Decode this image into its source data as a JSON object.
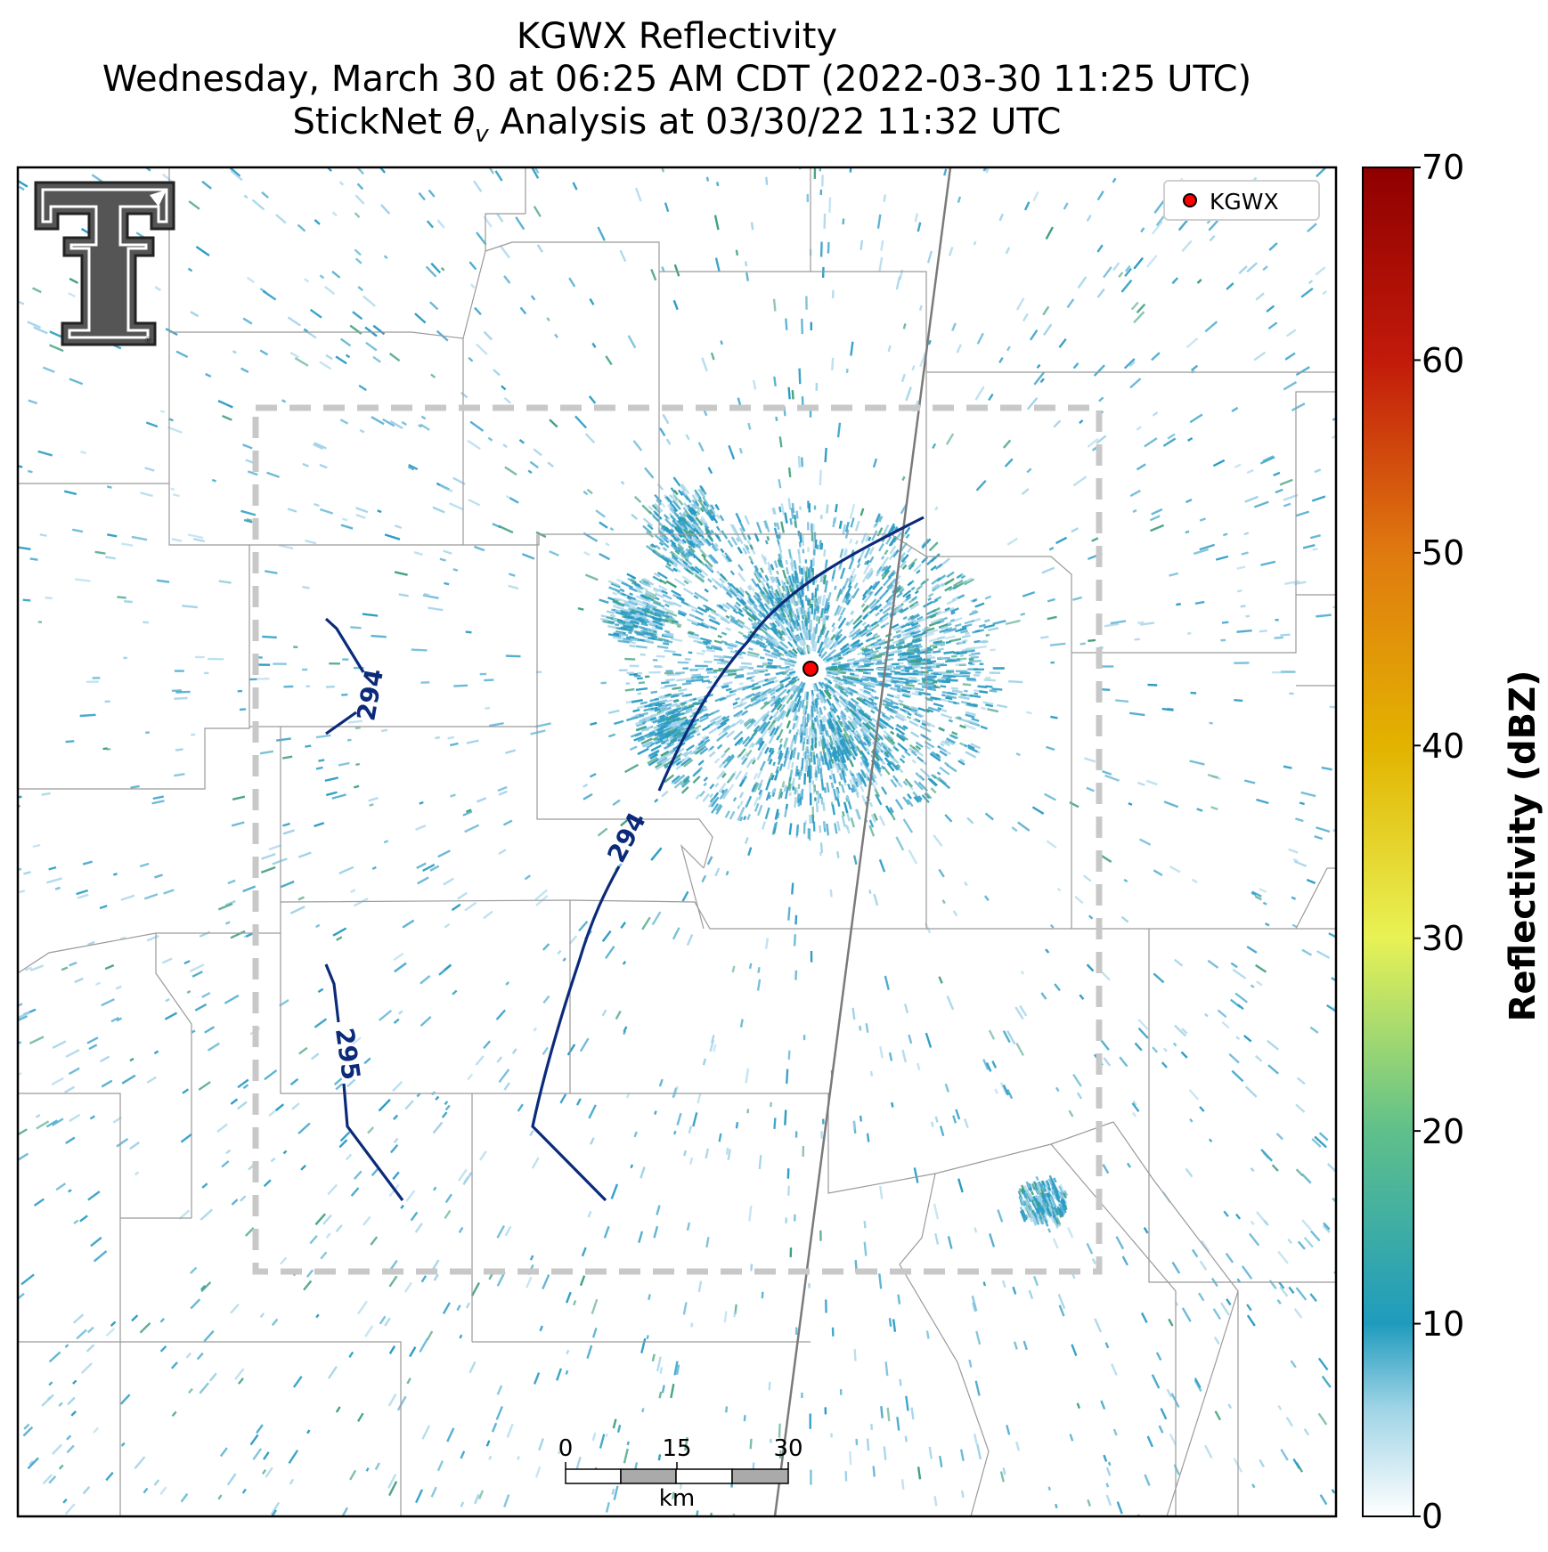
{
  "title": {
    "line1": "KGWX Reflectivity",
    "line2": "Wednesday, March 30 at 06:25 AM CDT (2022-03-30 11:25 UTC)",
    "line3_prefix": "StickNet ",
    "line3_symbol": "θ",
    "line3_subscript": "v",
    "line3_suffix": " Analysis at 03/30/22 11:32 UTC"
  },
  "legend": {
    "station_label": "KGWX",
    "marker_color": "#ff0000"
  },
  "colorbar": {
    "label": "Reflectivity (dBZ)",
    "ticks": [
      "0",
      "10",
      "20",
      "30",
      "40",
      "50",
      "60",
      "70"
    ],
    "range": [
      0,
      70
    ],
    "colors": [
      "#ffffff",
      "#1f9bbd",
      "#5fc08a",
      "#e8f255",
      "#e2b300",
      "#e07a10",
      "#c21a0a",
      "#8f0000"
    ]
  },
  "contours": {
    "color": "#0b2a7a",
    "labels": [
      "294",
      "294",
      "295"
    ]
  },
  "scale_bar": {
    "ticks": [
      "0",
      "15",
      "30"
    ],
    "unit": "km"
  },
  "logo": {
    "name": "Texas Tech Double T"
  },
  "colors": {
    "echo_primary": "#2a9bc4",
    "echo_light": "#9fd2e8",
    "echo_green": "#3fa07a",
    "county_lines": "#9a9a9a",
    "state_line": "#7a7a7a",
    "analysis_box": "#c8c8c8"
  }
}
